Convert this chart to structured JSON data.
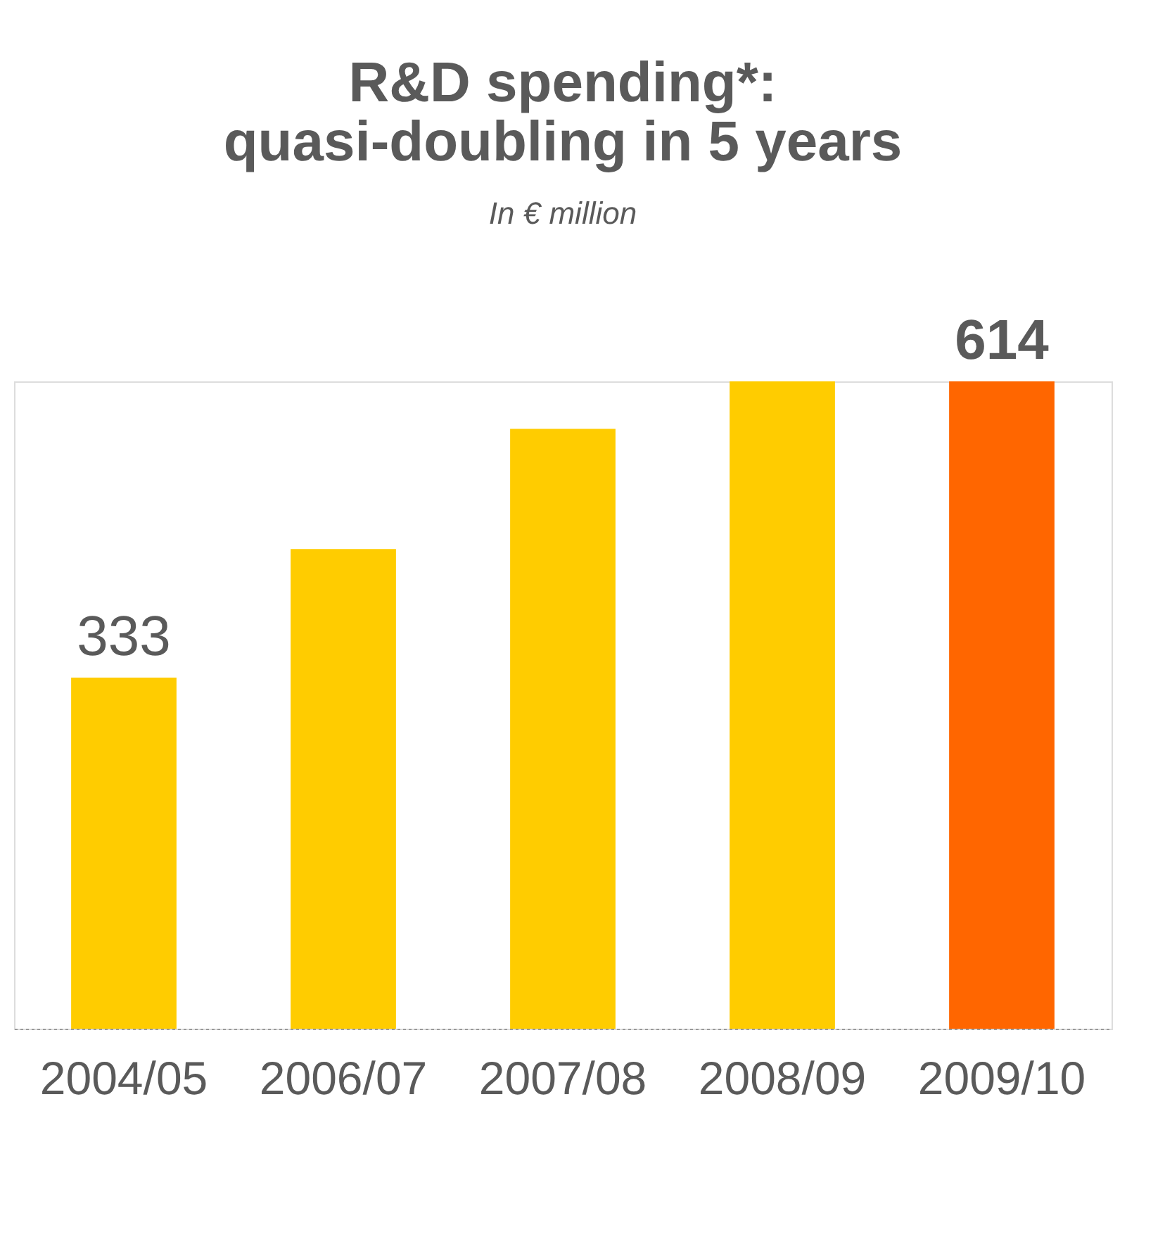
{
  "chart_data": {
    "type": "bar",
    "title": "R&D spending*:\nquasi-doubling in 5 years",
    "subtitle": "In € million",
    "categories": [
      "2004/05",
      "2006/07",
      "2007/08",
      "2008/09",
      "2009/10"
    ],
    "values": [
      333,
      455,
      569,
      614,
      614
    ],
    "colors": [
      "#ffcc00",
      "#ffcc00",
      "#ffcc00",
      "#ffcc00",
      "#ff6600"
    ],
    "value_labels": [
      "333",
      null,
      null,
      null,
      "614"
    ],
    "grid": false
  }
}
